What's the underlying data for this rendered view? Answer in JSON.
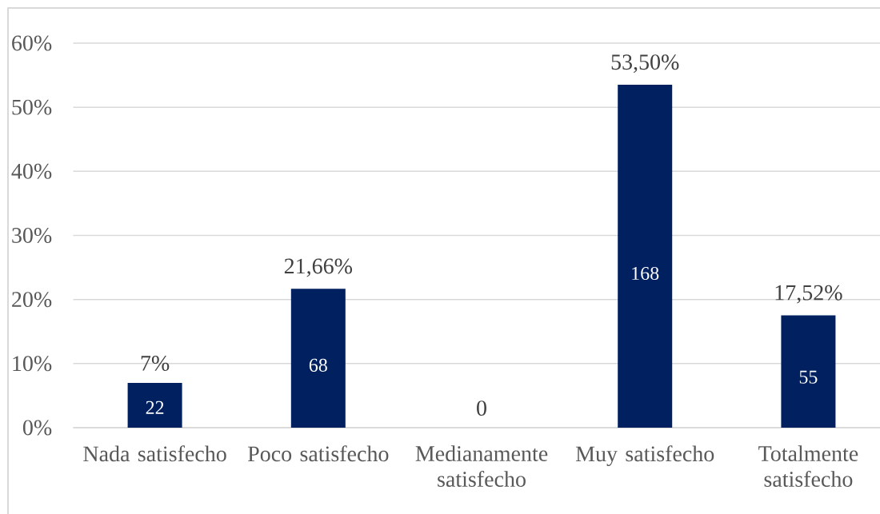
{
  "chart_data": {
    "type": "bar",
    "categories": [
      "Nada satisfecho",
      "Poco satisfecho",
      "Medianamente satisfecho",
      "Muy satisfecho",
      "Totalmente satisfecho"
    ],
    "values": [
      7,
      21.66,
      0,
      53.5,
      17.52
    ],
    "value_labels": [
      "7%",
      "21,66%",
      "0",
      "53,50%",
      "17,52%"
    ],
    "color": "#002060",
    "ylim": [
      0,
      60
    ],
    "yticks": [
      {
        "value": 0,
        "label": "0%"
      },
      {
        "value": 10,
        "label": "10%"
      },
      {
        "value": 20,
        "label": "20%"
      },
      {
        "value": 30,
        "label": "30%"
      },
      {
        "value": 40,
        "label": "40%"
      },
      {
        "value": 50,
        "label": "50%"
      },
      {
        "value": 60,
        "label": "60%"
      }
    ],
    "grid": "y",
    "annotations": [
      "22",
      "68",
      "168",
      "55"
    ]
  }
}
